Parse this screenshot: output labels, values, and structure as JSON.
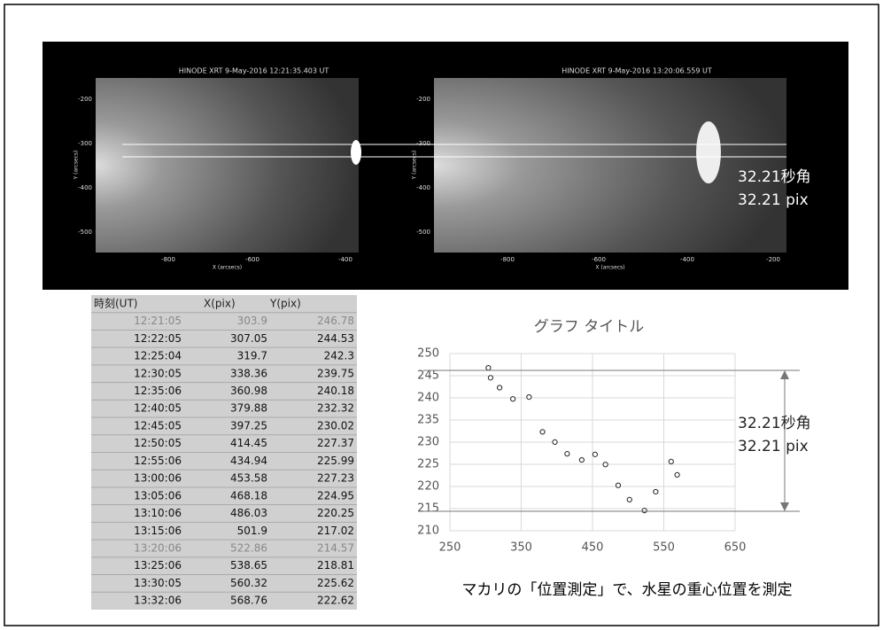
{
  "images": [
    {
      "title": "HINODE XRT  9-May-2016 12:21:35.403 UT",
      "ylabel": "Y (arcsecs)",
      "xlabel": "X (arcsecs)",
      "yticks": [
        -200,
        -300,
        -400,
        -500
      ],
      "xticks": [
        -800,
        -600,
        -400
      ]
    },
    {
      "title": "HINODE XRT  9-May-2016 13:20:06.559 UT",
      "ylabel": "Y (arcsecs)",
      "xlabel": "X (arcsecs)",
      "yticks": [
        -200,
        -300,
        -400,
        -500
      ],
      "xticks": [
        -800,
        -600,
        -400,
        -200
      ]
    }
  ],
  "image_annotation": [
    "32.21秒角",
    "32.21 pix"
  ],
  "table": {
    "header": [
      "時刻(UT)",
      "X(pix)",
      "Y(pix)"
    ],
    "rows": [
      [
        "12:21:05",
        "303.9",
        "246.78"
      ],
      [
        "12:22:05",
        "307.05",
        "244.53"
      ],
      [
        "12:25:04",
        "319.7",
        "242.3"
      ],
      [
        "12:30:05",
        "338.36",
        "239.75"
      ],
      [
        "12:35:06",
        "360.98",
        "240.18"
      ],
      [
        "12:40:05",
        "379.88",
        "232.32"
      ],
      [
        "12:45:05",
        "397.25",
        "230.02"
      ],
      [
        "12:50:05",
        "414.45",
        "227.37"
      ],
      [
        "12:55:06",
        "434.94",
        "225.99"
      ],
      [
        "13:00:06",
        "453.58",
        "227.23"
      ],
      [
        "13:05:06",
        "468.18",
        "224.95"
      ],
      [
        "13:10:06",
        "486.03",
        "220.25"
      ],
      [
        "13:15:06",
        "501.9",
        "217.02"
      ],
      [
        "13:20:06",
        "522.86",
        "214.57"
      ],
      [
        "13:25:06",
        "538.65",
        "218.81"
      ],
      [
        "13:30:05",
        "560.32",
        "225.62"
      ],
      [
        "13:32:06",
        "568.76",
        "222.62"
      ]
    ]
  },
  "chart_data": {
    "type": "scatter",
    "title": "グラフ タイトル",
    "x": [
      303.9,
      307.05,
      319.7,
      338.36,
      360.98,
      379.88,
      397.25,
      414.45,
      434.94,
      453.58,
      468.18,
      486.03,
      501.9,
      522.86,
      538.65,
      560.32,
      568.76
    ],
    "values": [
      246.78,
      244.53,
      242.3,
      239.75,
      240.18,
      232.32,
      230.02,
      227.37,
      225.99,
      227.23,
      224.95,
      220.25,
      217.02,
      214.57,
      218.81,
      225.62,
      222.62
    ],
    "xlim": [
      250,
      650
    ],
    "xticks": [
      250,
      350,
      450,
      550,
      650
    ],
    "ylim": [
      210,
      250
    ],
    "yticks": [
      210,
      215,
      220,
      225,
      230,
      235,
      240,
      245,
      250
    ],
    "grid": true,
    "annotations": [
      "32.21秒角",
      "32.21 pix"
    ]
  },
  "caption": "マカリの「位置測定」で、水星の重心位置を測定"
}
